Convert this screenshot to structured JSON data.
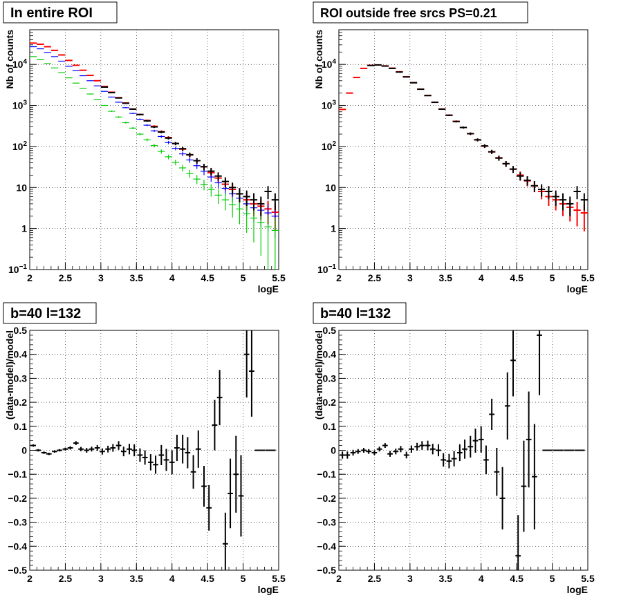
{
  "chart_data": [
    {
      "type": "errorbar-hist",
      "title": "In entire ROI",
      "xlabel": "logE",
      "ylabel": "Nb of counts",
      "ylog": true,
      "xlim": [
        2,
        5.5
      ],
      "ylim": [
        0.1,
        70000
      ],
      "grid": true,
      "x_ticks": [
        "2",
        "2.5",
        "3",
        "3.5",
        "4",
        "4.5",
        "5",
        "5.5"
      ],
      "y_ticks": [
        "10^-1",
        "1",
        "10",
        "10^2",
        "10^3",
        "10^4"
      ],
      "bin_width": 0.1,
      "series": [
        {
          "color": "#ff0000",
          "x": [
            2.05,
            2.15,
            2.25,
            2.35,
            2.45,
            2.55,
            2.65,
            2.75,
            2.85,
            2.95,
            3.05,
            3.15,
            3.25,
            3.35,
            3.45,
            3.55,
            3.65,
            3.75,
            3.85,
            3.95,
            4.05,
            4.15,
            4.25,
            4.35,
            4.45,
            4.55,
            4.65,
            4.75,
            4.85,
            4.95,
            5.05,
            5.15,
            5.25,
            5.35,
            5.45
          ],
          "y": [
            33000,
            31000,
            27000,
            22000,
            17000,
            12500,
            9500,
            7200,
            5400,
            4000,
            2900,
            2100,
            1550,
            1150,
            820,
            600,
            430,
            310,
            230,
            165,
            118,
            86,
            62,
            45,
            32,
            23,
            17,
            12,
            9,
            7,
            5,
            4,
            3.5,
            3,
            2.5
          ]
        },
        {
          "color": "#0000ff",
          "x": [
            2.05,
            2.15,
            2.25,
            2.35,
            2.45,
            2.55,
            2.65,
            2.75,
            2.85,
            2.95,
            3.05,
            3.15,
            3.25,
            3.35,
            3.45,
            3.55,
            3.65,
            3.75,
            3.85,
            3.95,
            4.05,
            4.15,
            4.25,
            4.35,
            4.45,
            4.55,
            4.65,
            4.75,
            4.85,
            4.95,
            5.05,
            5.15,
            5.25,
            5.35,
            5.45
          ],
          "y": [
            27000,
            24000,
            19500,
            15500,
            12000,
            9000,
            7000,
            5300,
            4000,
            3000,
            2200,
            1600,
            1200,
            880,
            640,
            460,
            330,
            240,
            175,
            125,
            90,
            66,
            47,
            34,
            25,
            18,
            13,
            9.5,
            7,
            5.5,
            4,
            3.2,
            2.8,
            2.4,
            2
          ]
        },
        {
          "color": "#00cc00",
          "x": [
            2.05,
            2.15,
            2.25,
            2.35,
            2.45,
            2.55,
            2.65,
            2.75,
            2.85,
            2.95,
            3.05,
            3.15,
            3.25,
            3.35,
            3.45,
            3.55,
            3.65,
            3.75,
            3.85,
            3.95,
            4.05,
            4.15,
            4.25,
            4.35,
            4.45,
            4.55,
            4.65,
            4.75,
            4.85,
            4.95,
            5.05,
            5.15,
            5.25,
            5.35,
            5.45
          ],
          "y": [
            15500,
            13000,
            10500,
            8200,
            6300,
            4700,
            3500,
            2600,
            1900,
            1400,
            1000,
            720,
            520,
            380,
            280,
            200,
            145,
            105,
            76,
            56,
            41,
            30,
            22,
            16,
            12,
            9,
            6.5,
            5,
            3.8,
            3,
            2.3,
            1.8,
            1.4,
            1.1,
            0.9
          ]
        },
        {
          "color": "#000000",
          "x": [
            3.05,
            3.15,
            3.25,
            3.35,
            3.45,
            3.55,
            3.65,
            3.75,
            3.85,
            3.95,
            4.05,
            4.15,
            4.25,
            4.35,
            4.45,
            4.55,
            4.65,
            4.75,
            4.85,
            4.95,
            5.05,
            5.15,
            5.25,
            5.35,
            5.45
          ],
          "y": [
            2800,
            2050,
            1520,
            1130,
            810,
            600,
            420,
            300,
            225,
            160,
            118,
            88,
            63,
            45,
            32,
            25,
            19,
            14,
            10,
            7,
            6,
            5,
            4,
            8,
            5
          ]
        }
      ]
    },
    {
      "type": "errorbar-hist",
      "title": "ROI outside free srcs PS=0.21",
      "xlabel": "logE",
      "ylabel": "Nb of counts",
      "ylog": true,
      "xlim": [
        2,
        5.5
      ],
      "ylim": [
        0.1,
        70000
      ],
      "grid": true,
      "x_ticks": [
        "2",
        "2.5",
        "3",
        "3.5",
        "4",
        "4.5",
        "5",
        "5.5"
      ],
      "y_ticks": [
        "10^-1",
        "1",
        "10",
        "10^2",
        "10^3",
        "10^4"
      ],
      "bin_width": 0.1,
      "series": [
        {
          "color": "#ff0000",
          "x": [
            2.05,
            2.15,
            2.25,
            2.35,
            2.45,
            2.55,
            2.65,
            2.75,
            2.85,
            2.95,
            3.05,
            3.15,
            3.25,
            3.35,
            3.45,
            3.55,
            3.65,
            3.75,
            3.85,
            3.95,
            4.05,
            4.15,
            4.25,
            4.35,
            4.45,
            4.55,
            4.65,
            4.75,
            4.85,
            4.95,
            5.05,
            5.15,
            5.25,
            5.35,
            5.45
          ],
          "y": [
            800,
            2000,
            4800,
            8000,
            9500,
            9700,
            9200,
            8100,
            6600,
            5000,
            3600,
            2500,
            1750,
            1200,
            820,
            580,
            410,
            290,
            205,
            145,
            102,
            74,
            53,
            38,
            28,
            20,
            14.5,
            11,
            8,
            6,
            5,
            4,
            3.3,
            2.8,
            2.4
          ]
        },
        {
          "color": "#000000",
          "x": [
            2.45,
            2.55,
            2.65,
            2.75,
            2.85,
            2.95,
            3.05,
            3.15,
            3.25,
            3.35,
            3.45,
            3.55,
            3.65,
            3.75,
            3.85,
            3.95,
            4.05,
            4.15,
            4.25,
            4.35,
            4.45,
            4.55,
            4.65,
            4.75,
            4.85,
            4.95,
            5.05,
            5.15,
            5.25,
            5.35,
            5.45
          ],
          "y": [
            9400,
            9700,
            9100,
            8000,
            6500,
            4950,
            3560,
            2480,
            1740,
            1190,
            810,
            575,
            405,
            290,
            205,
            145,
            103,
            74,
            52,
            38,
            28,
            19,
            15,
            11,
            9,
            8,
            6,
            5,
            4,
            8,
            5
          ]
        }
      ]
    },
    {
      "type": "errorbar-hist",
      "title": "b=40 l=132",
      "xlabel": "logE",
      "ylabel": "(data-model)/model",
      "ylog": false,
      "xlim": [
        2,
        5.5
      ],
      "ylim": [
        -0.5,
        0.5
      ],
      "grid": true,
      "x_ticks": [
        "2",
        "2.5",
        "3",
        "3.5",
        "4",
        "4.5",
        "5",
        "5.5"
      ],
      "y_ticks": [
        "-0.5",
        "-0.4",
        "-0.3",
        "-0.2",
        "-0.1",
        "0",
        "0.1",
        "0.2",
        "0.3",
        "0.4",
        "0.5"
      ],
      "bin_width": 0.075,
      "series": [
        {
          "color": "#000000",
          "x": [
            2.05,
            2.12,
            2.2,
            2.27,
            2.35,
            2.42,
            2.5,
            2.57,
            2.65,
            2.72,
            2.8,
            2.87,
            2.95,
            3.02,
            3.1,
            3.17,
            3.25,
            3.32,
            3.4,
            3.47,
            3.55,
            3.62,
            3.7,
            3.77,
            3.85,
            3.92,
            4,
            4.07,
            4.15,
            4.22,
            4.3,
            4.37,
            4.45,
            4.52,
            4.6,
            4.67,
            4.75,
            4.82,
            4.9,
            4.97,
            5.05,
            5.12,
            5.2,
            5.27,
            5.35,
            5.42
          ],
          "y": [
            0.02,
            0.0,
            -0.01,
            -0.015,
            -0.005,
            0.0,
            0.005,
            0.01,
            0.03,
            0.005,
            0.0,
            0.005,
            0.01,
            -0.005,
            0.005,
            0.01,
            0.02,
            -0.005,
            0.005,
            0.0,
            -0.02,
            -0.03,
            -0.05,
            -0.06,
            -0.02,
            -0.04,
            -0.05,
            0.01,
            0.005,
            -0.01,
            -0.09,
            0.005,
            -0.15,
            -0.24,
            0.105,
            0.22,
            -0.39,
            -0.18,
            -0.1,
            -0.19,
            0.4,
            0.33,
            0.0,
            0.0,
            0.0,
            0.0
          ],
          "err": [
            0.005,
            0.005,
            0.005,
            0.005,
            0.005,
            0.005,
            0.006,
            0.007,
            0.008,
            0.009,
            0.01,
            0.01,
            0.012,
            0.013,
            0.014,
            0.016,
            0.018,
            0.02,
            0.022,
            0.025,
            0.028,
            0.03,
            0.034,
            0.038,
            0.042,
            0.046,
            0.05,
            0.055,
            0.06,
            0.065,
            0.07,
            0.078,
            0.085,
            0.095,
            0.105,
            0.115,
            0.13,
            0.145,
            0.16,
            0.17,
            0.18,
            0.19,
            0.0,
            0.0,
            0.0,
            0.0
          ]
        }
      ]
    },
    {
      "type": "errorbar-hist",
      "title": "b=40 l=132",
      "xlabel": "logE",
      "ylabel": "(data-model)/model",
      "ylog": false,
      "xlim": [
        2,
        5.5
      ],
      "ylim": [
        -0.5,
        0.5
      ],
      "grid": true,
      "x_ticks": [
        "2",
        "2.5",
        "3",
        "3.5",
        "4",
        "4.5",
        "5",
        "5.5"
      ],
      "y_ticks": [
        "-0.5",
        "-0.4",
        "-0.3",
        "-0.2",
        "-0.1",
        "0",
        "0.1",
        "0.2",
        "0.3",
        "0.4",
        "0.5"
      ],
      "bin_width": 0.075,
      "series": [
        {
          "color": "#000000",
          "x": [
            2.05,
            2.12,
            2.2,
            2.27,
            2.35,
            2.42,
            2.5,
            2.57,
            2.65,
            2.72,
            2.8,
            2.87,
            2.95,
            3.02,
            3.1,
            3.17,
            3.25,
            3.32,
            3.4,
            3.47,
            3.55,
            3.62,
            3.7,
            3.77,
            3.85,
            3.92,
            4,
            4.07,
            4.15,
            4.22,
            4.3,
            4.37,
            4.45,
            4.52,
            4.6,
            4.67,
            4.75,
            4.82,
            4.9,
            4.97,
            5.05,
            5.12,
            5.2,
            5.27,
            5.35,
            5.42
          ],
          "y": [
            -0.02,
            -0.02,
            -0.01,
            -0.005,
            0.0,
            -0.005,
            -0.01,
            0.005,
            0.02,
            -0.015,
            -0.005,
            0.005,
            -0.02,
            0.005,
            0.015,
            0.02,
            0.02,
            0.005,
            0.0,
            -0.04,
            -0.045,
            -0.035,
            -0.01,
            0.005,
            0.015,
            0.04,
            0.045,
            -0.04,
            0.15,
            -0.09,
            -0.2,
            0.185,
            0.375,
            -0.44,
            -0.15,
            0.045,
            -0.11,
            0.48,
            0.0,
            0.0,
            0.0,
            0.0,
            0.0,
            0.0,
            0.0,
            0.0
          ],
          "err": [
            0.015,
            0.015,
            0.012,
            0.01,
            0.01,
            0.01,
            0.01,
            0.01,
            0.01,
            0.012,
            0.012,
            0.013,
            0.014,
            0.015,
            0.016,
            0.018,
            0.02,
            0.022,
            0.025,
            0.028,
            0.03,
            0.032,
            0.035,
            0.04,
            0.045,
            0.05,
            0.055,
            0.06,
            0.065,
            0.1,
            0.13,
            0.14,
            0.15,
            0.17,
            0.19,
            0.2,
            0.22,
            0.25,
            0.0,
            0.0,
            0.0,
            0.0,
            0.0,
            0.0,
            0.0,
            0.0
          ]
        }
      ]
    }
  ]
}
